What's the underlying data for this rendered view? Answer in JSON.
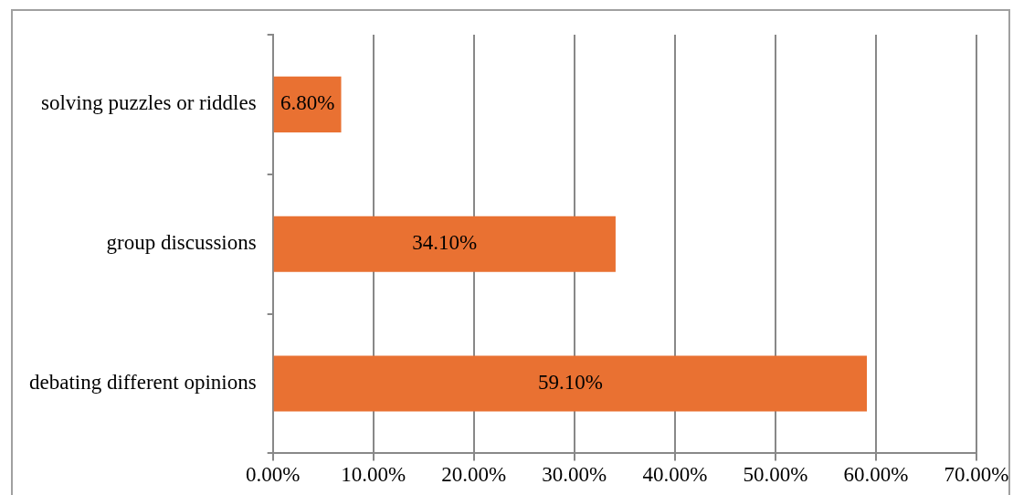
{
  "chart_data": {
    "type": "bar",
    "orientation": "horizontal",
    "categories": [
      "solving puzzles or riddles",
      "group discussions",
      "debating different opinions"
    ],
    "values": [
      6.8,
      34.1,
      59.1
    ],
    "value_labels": [
      "6.80%",
      "34.10%",
      "59.10%"
    ],
    "color": "#e97132",
    "xlim": [
      0,
      70
    ],
    "xticks": [
      {
        "value": 0,
        "label": "0.00%"
      },
      {
        "value": 10,
        "label": "10.00%"
      },
      {
        "value": 20,
        "label": "20.00%"
      },
      {
        "value": 30,
        "label": "30.00%"
      },
      {
        "value": 40,
        "label": "40.00%"
      },
      {
        "value": 50,
        "label": "50.00%"
      },
      {
        "value": 60,
        "label": "60.00%"
      },
      {
        "value": 70,
        "label": "70.00%"
      }
    ],
    "grid": "x"
  }
}
